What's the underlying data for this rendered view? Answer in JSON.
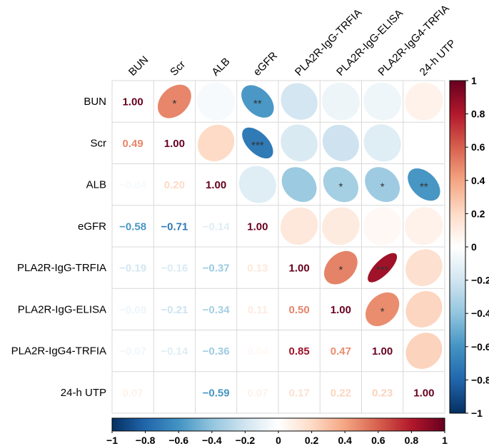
{
  "chart_data": {
    "type": "heatmap",
    "variant": "mixed-correlation-matrix",
    "lower_triangle": "number",
    "upper_triangle": "ellipse",
    "labels": [
      "BUN",
      "Scr",
      "ALB",
      "eGFR",
      "PLA2R-IgG-TRFIA",
      "PLA2R-IgG-ELISA",
      "PLA2R-IgG4-TRFIA",
      "24-h UTP"
    ],
    "values": [
      [
        1.0,
        0.49,
        -0.04,
        -0.58,
        -0.19,
        -0.08,
        -0.07,
        0.07
      ],
      [
        0.49,
        1.0,
        0.2,
        -0.71,
        -0.16,
        -0.21,
        -0.14,
        0.0
      ],
      [
        -0.04,
        0.2,
        1.0,
        -0.14,
        -0.37,
        -0.34,
        -0.36,
        -0.59
      ],
      [
        -0.58,
        -0.71,
        -0.14,
        1.0,
        0.13,
        0.11,
        0.04,
        0.07
      ],
      [
        -0.19,
        -0.16,
        -0.37,
        0.13,
        1.0,
        0.5,
        0.85,
        0.17
      ],
      [
        -0.08,
        -0.21,
        -0.34,
        0.11,
        0.5,
        1.0,
        0.47,
        0.22
      ],
      [
        -0.07,
        -0.14,
        -0.36,
        0.04,
        0.85,
        0.47,
        1.0,
        0.23
      ],
      [
        0.07,
        0.0,
        -0.59,
        0.07,
        0.17,
        0.22,
        0.23,
        1.0
      ]
    ],
    "value_labels": [
      [
        "1.00",
        "",
        "",
        "",
        "",
        "",
        "",
        ""
      ],
      [
        "0.49",
        "1.00",
        "",
        "",
        "",
        "",
        "",
        ""
      ],
      [
        "−0.04",
        "0.20",
        "1.00",
        "",
        "",
        "",
        "",
        ""
      ],
      [
        "−0.58",
        "−0.71",
        "−0.14",
        "1.00",
        "",
        "",
        "",
        ""
      ],
      [
        "−0.19",
        "−0.16",
        "−0.37",
        "0.13",
        "1.00",
        "",
        "",
        ""
      ],
      [
        "−0.08",
        "−0.21",
        "−0.34",
        "0.11",
        "0.50",
        "1.00",
        "",
        ""
      ],
      [
        "−0.07",
        "−0.14",
        "−0.36",
        "0.04",
        "0.85",
        "0.47",
        "1.00",
        ""
      ],
      [
        "0.07",
        "",
        "−0.59",
        "0.07",
        "0.17",
        "0.22",
        "0.23",
        "1.00"
      ]
    ],
    "significance": [
      [
        "",
        "*",
        "",
        "**",
        "",
        "",
        "",
        ""
      ],
      [
        "",
        "",
        "",
        "***",
        "",
        "",
        "",
        ""
      ],
      [
        "",
        "",
        "",
        "",
        "",
        "*",
        "*",
        "**"
      ],
      [
        "",
        "",
        "",
        "",
        "",
        "",
        "",
        ""
      ],
      [
        "",
        "",
        "",
        "",
        "",
        "*",
        "***",
        ""
      ],
      [
        "",
        "",
        "",
        "",
        "",
        "",
        "*",
        ""
      ],
      [
        "",
        "",
        "",
        "",
        "",
        "",
        "",
        ""
      ],
      [
        "",
        "",
        "",
        "",
        "",
        "",
        "",
        ""
      ]
    ],
    "color_scale": {
      "min": -1,
      "max": 1,
      "stops": [
        {
          "value": -1,
          "color": "#053061"
        },
        {
          "value": -0.8,
          "color": "#2166ac"
        },
        {
          "value": -0.6,
          "color": "#4393c3"
        },
        {
          "value": -0.4,
          "color": "#92c5de"
        },
        {
          "value": -0.2,
          "color": "#d1e5f0"
        },
        {
          "value": 0,
          "color": "#ffffff"
        },
        {
          "value": 0.2,
          "color": "#fddbc7"
        },
        {
          "value": 0.4,
          "color": "#f4a582"
        },
        {
          "value": 0.6,
          "color": "#d6604d"
        },
        {
          "value": 0.8,
          "color": "#b2182b"
        },
        {
          "value": 1,
          "color": "#67001f"
        }
      ]
    },
    "colorbar_right": {
      "ticks": [
        1,
        0.8,
        0.6,
        0.4,
        0.2,
        0,
        -0.2,
        -0.4,
        -0.6,
        -0.8,
        -1
      ],
      "tick_labels": [
        "1",
        "0.8",
        "0.6",
        "0.4",
        "0.2",
        "0",
        "−0.2",
        "−0.4",
        "−0.6",
        "−0.8",
        "−1"
      ]
    },
    "colorbar_bottom": {
      "ticks": [
        -1,
        -0.8,
        -0.6,
        -0.4,
        -0.2,
        0,
        0.2,
        0.4,
        0.6,
        0.8,
        1
      ],
      "tick_labels": [
        "−1",
        "−0.8",
        "−0.6",
        "−0.4",
        "−0.2",
        "0",
        "0.2",
        "0.4",
        "0.6",
        "0.8",
        "1"
      ]
    },
    "grid_color": "#d9d9d9",
    "asterisk_color": "#333333"
  }
}
